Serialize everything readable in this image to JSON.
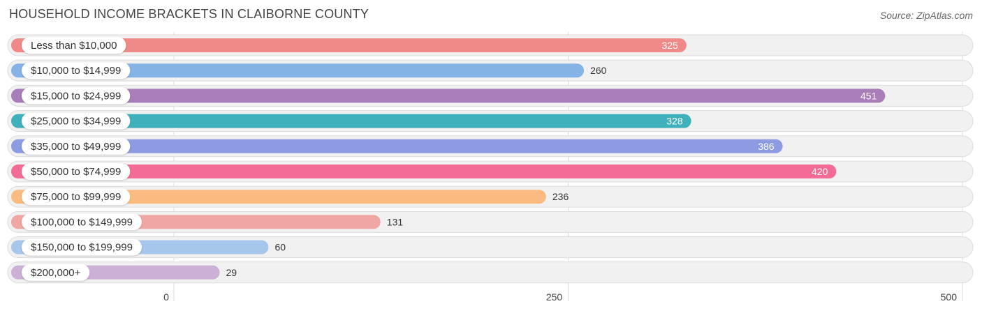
{
  "header": {
    "title": "HOUSEHOLD INCOME BRACKETS IN CLAIBORNE COUNTY",
    "source": "Source: ZipAtlas.com"
  },
  "chart_data": {
    "type": "bar",
    "orientation": "horizontal",
    "categories": [
      "Less than $10,000",
      "$10,000 to $14,999",
      "$15,000 to $24,999",
      "$25,000 to $34,999",
      "$35,000 to $49,999",
      "$50,000 to $74,999",
      "$75,000 to $99,999",
      "$100,000 to $149,999",
      "$150,000 to $199,999",
      "$200,000+"
    ],
    "values": [
      325,
      260,
      451,
      328,
      386,
      420,
      236,
      131,
      60,
      29
    ],
    "colors": [
      "#f08a89",
      "#86b3e6",
      "#a87db8",
      "#3fb1bc",
      "#8c9be2",
      "#f36c95",
      "#fbbb80",
      "#f0a6a3",
      "#a7c6ec",
      "#cdb0d5"
    ],
    "xlim": [
      0,
      500
    ],
    "xticks": [
      0,
      250,
      500
    ],
    "grid": true,
    "title": "HOUSEHOLD INCOME BRACKETS IN CLAIBORNE COUNTY",
    "xlabel": "",
    "ylabel": ""
  }
}
